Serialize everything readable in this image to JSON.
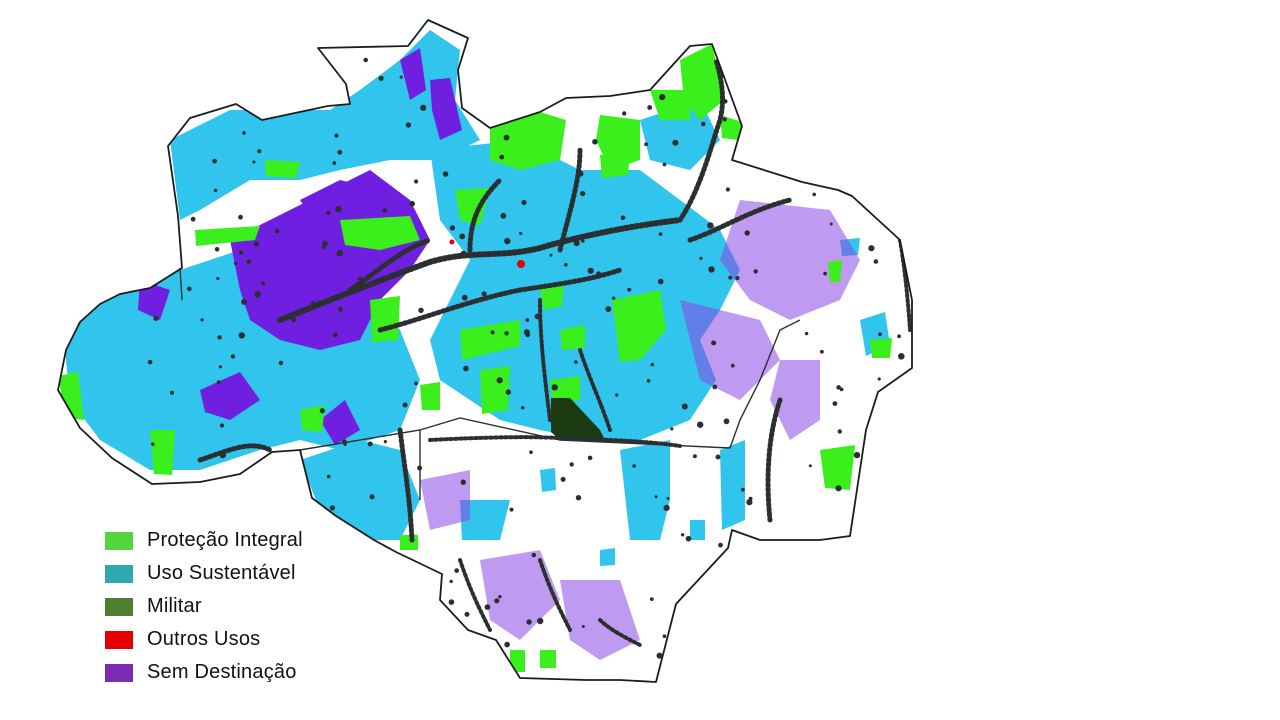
{
  "colors": {
    "background": "#ffffff",
    "border": "#1c1c1c",
    "protecao_integral": "#3aef1c",
    "uso_sustentavel": "#31c4ec",
    "militar": "#1b3a12",
    "outros_usos": "#e60000",
    "sem_destinacao": "#6f1fe0",
    "infrastructure": "#2b2f31"
  },
  "legend": {
    "items": [
      {
        "label": "Proteção Integral",
        "color": "#52d63b",
        "icon": "legend-swatch"
      },
      {
        "label": "Uso Sustentável",
        "color": "#2fa9b0",
        "icon": "legend-swatch"
      },
      {
        "label": "Militar",
        "color": "#4f7f33",
        "icon": "legend-swatch"
      },
      {
        "label": "Outros Usos",
        "color": "#e60000",
        "icon": "legend-swatch"
      },
      {
        "label": "Sem Destinação",
        "color": "#7a2db3",
        "icon": "legend-swatch"
      }
    ]
  }
}
